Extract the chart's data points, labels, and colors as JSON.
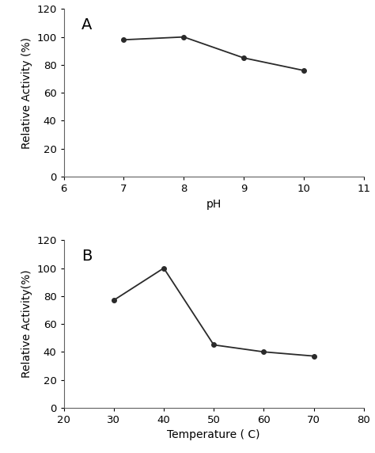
{
  "panel_A": {
    "x": [
      7,
      8,
      9,
      10
    ],
    "y": [
      98,
      100,
      85,
      76
    ],
    "xlabel": "pH",
    "ylabel": "Relative Activity (%)",
    "xlim": [
      6,
      11
    ],
    "ylim": [
      0,
      120
    ],
    "xticks": [
      6,
      7,
      8,
      9,
      10,
      11
    ],
    "yticks": [
      0,
      20,
      40,
      60,
      80,
      100,
      120
    ],
    "label": "A"
  },
  "panel_B": {
    "x": [
      30,
      40,
      50,
      60,
      70
    ],
    "y": [
      77,
      100,
      45,
      40,
      37
    ],
    "xlabel": "Temperature ( C)",
    "ylabel": "Relative Activity(%)",
    "xlim": [
      20,
      80
    ],
    "ylim": [
      0,
      120
    ],
    "xticks": [
      20,
      30,
      40,
      50,
      60,
      70,
      80
    ],
    "yticks": [
      0,
      20,
      40,
      60,
      80,
      100,
      120
    ],
    "label": "B"
  },
  "line_color": "#2a2a2a",
  "marker": "o",
  "markersize": 4,
  "linewidth": 1.3,
  "background_color": "#ffffff",
  "figsize": [
    4.74,
    5.72
  ],
  "dpi": 100,
  "label_fontsize": 14,
  "axis_fontsize": 10,
  "tick_fontsize": 9.5
}
